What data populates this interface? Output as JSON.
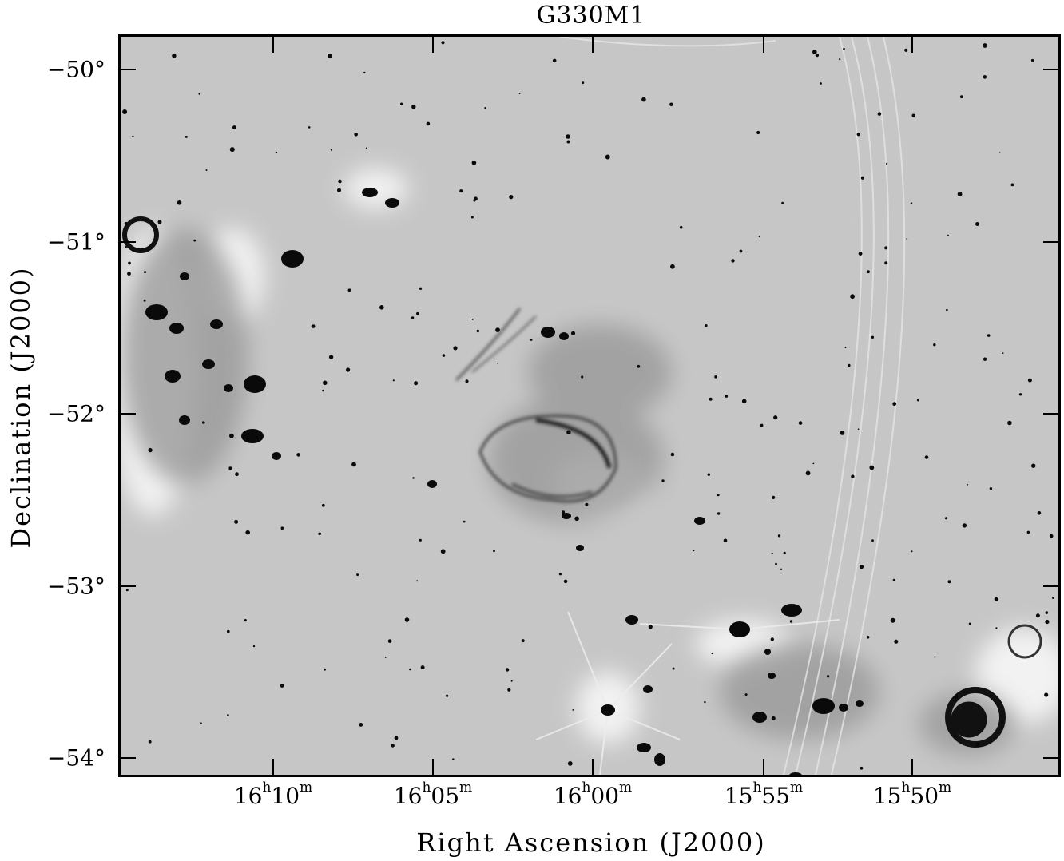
{
  "title": "G330M1",
  "axes": {
    "xlabel": "Right Ascension (J2000)",
    "ylabel": "Declination (J2000)",
    "yticks": [
      "−50°",
      "−51°",
      "−52°",
      "−53°",
      "−54°"
    ],
    "xticks": [
      {
        "h": "16",
        "m": "10"
      },
      {
        "h": "16",
        "m": "05"
      },
      {
        "h": "16",
        "m": "00"
      },
      {
        "h": "15",
        "m": "55"
      },
      {
        "h": "15",
        "m": "50"
      }
    ]
  },
  "image": {
    "colormap": "grayscale, dark = bright emission",
    "background_color": "#c9c9c9",
    "source_color": "#000000"
  }
}
